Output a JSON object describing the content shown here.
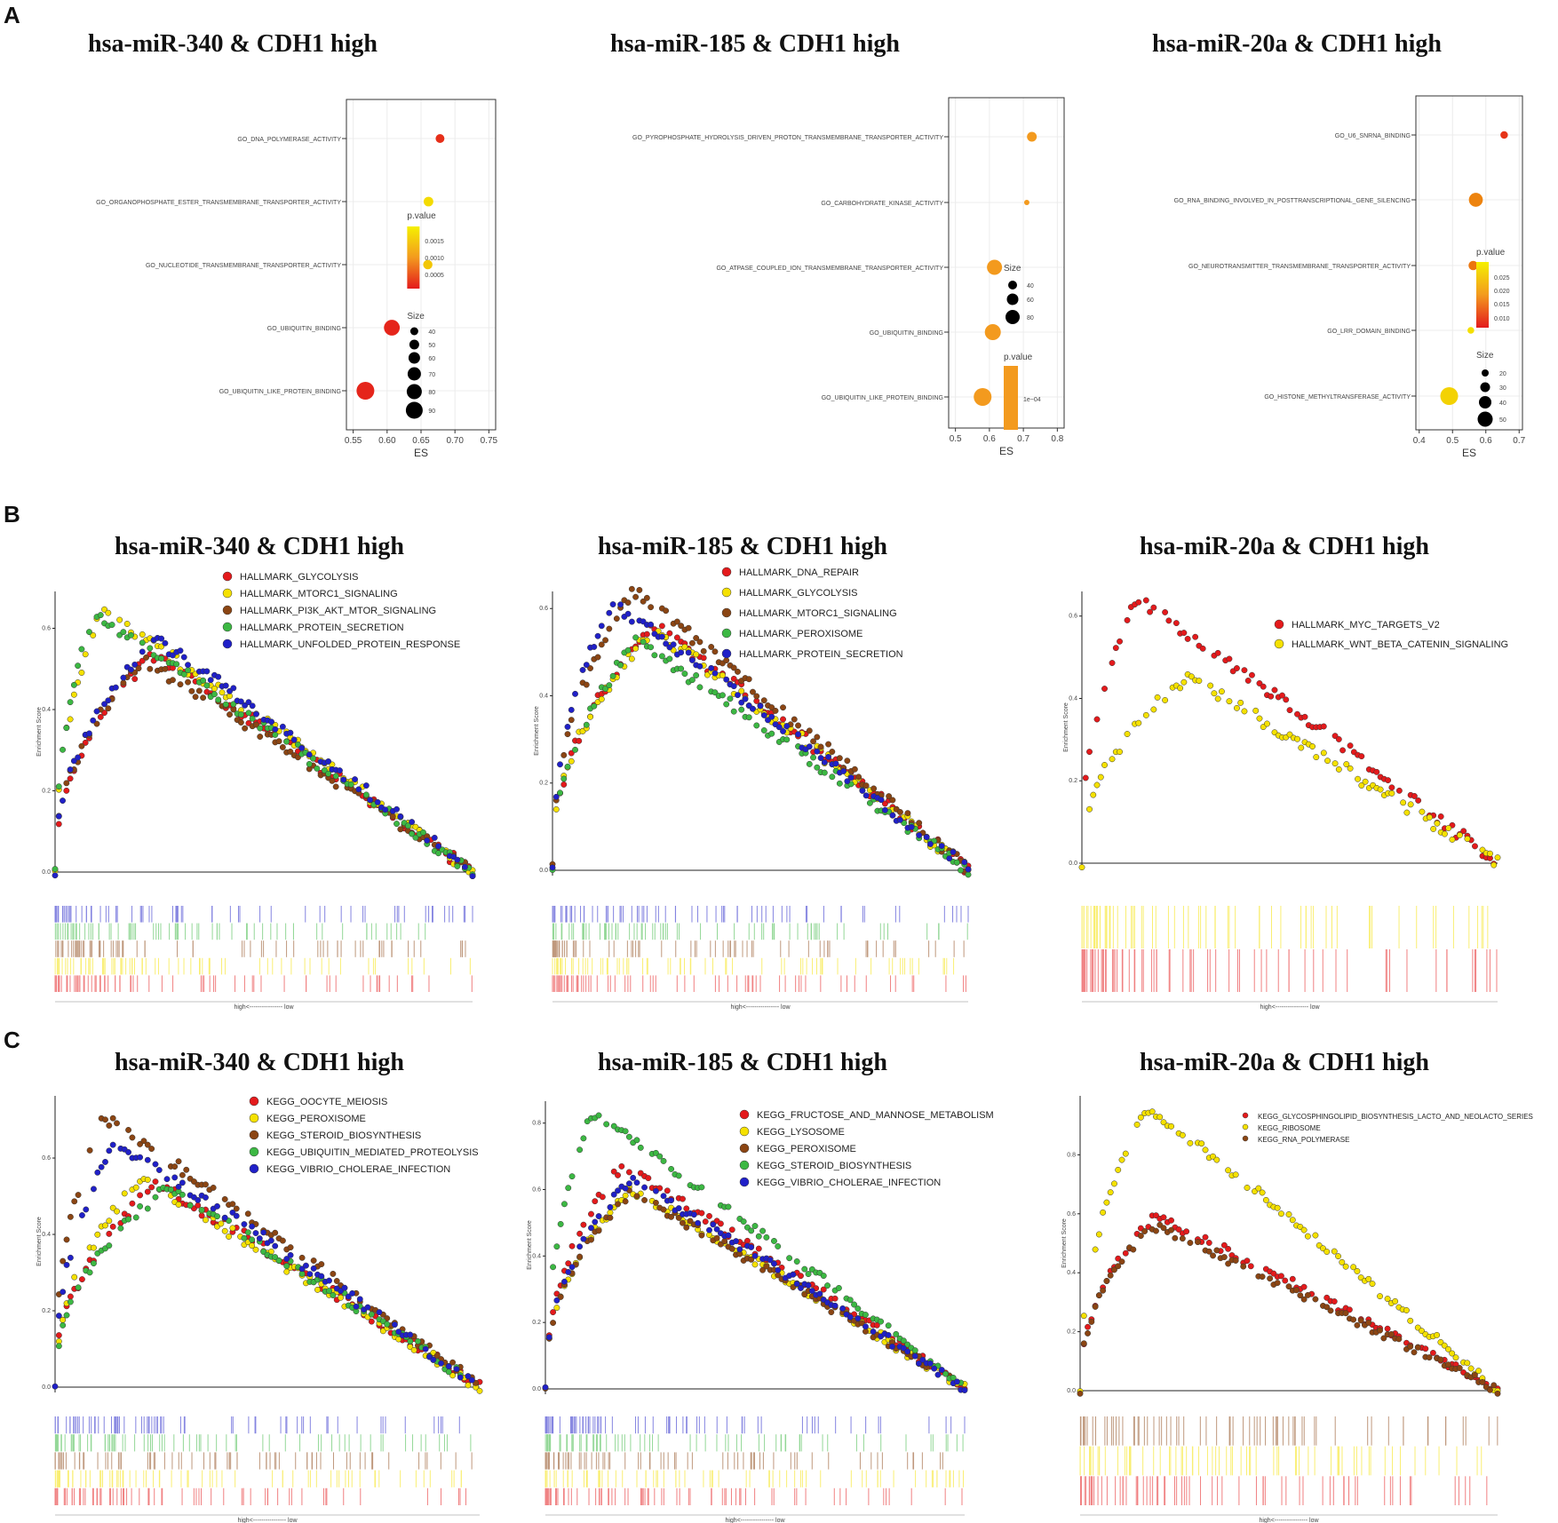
{
  "panel_letters": [
    "A",
    "B",
    "C"
  ],
  "colors": {
    "red": "#e41a1c",
    "yellow": "#f5e100",
    "brown": "#8b4513",
    "green": "#3cb843",
    "blue": "#2020c8",
    "orange": "#f39a1e",
    "grid": "#ececec"
  },
  "chart_data": [
    {
      "panel": "A",
      "type": "scatter",
      "title": "hsa-miR-340 & CDH1 high",
      "xlabel": "ES",
      "xlim": [
        0.54,
        0.76
      ],
      "xticks": [
        0.55,
        0.6,
        0.65,
        0.7,
        0.75
      ],
      "xtick_labels": [
        "0.55",
        "0.60",
        "0.65",
        "0.70",
        "0.75"
      ],
      "terms": [
        "GO_DNA_POLYMERASE_ACTIVITY",
        "GO_ORGANOPHOSPHATE_ESTER_TRANSMEMBRANE_TRANSPORTER_ACTIVITY",
        "GO_NUCLEOTIDE_TRANSMEMBRANE_TRANSPORTER_ACTIVITY",
        "GO_UBIQUITIN_BINDING",
        "GO_UBIQUITIN_LIKE_PROTEIN_BINDING"
      ],
      "es": [
        0.678,
        0.661,
        0.66,
        0.607,
        0.568
      ],
      "size": [
        35,
        40,
        38,
        78,
        90
      ],
      "color_value": [
        0.0002,
        0.0018,
        0.0016,
        0.0001,
        0.0001
      ],
      "colorbar_title": "p.value",
      "colorbar_labels": [
        "0.0015",
        "0.0010",
        "0.0005"
      ],
      "size_title": "Size",
      "size_labels": [
        "40",
        "50",
        "60",
        "70",
        "80",
        "90"
      ]
    },
    {
      "panel": "A",
      "type": "scatter",
      "title": "hsa-miR-185 & CDH1 high",
      "xlabel": "ES",
      "xlim": [
        0.48,
        0.82
      ],
      "xticks": [
        0.5,
        0.6,
        0.7,
        0.8
      ],
      "xtick_labels": [
        "0.5",
        "0.6",
        "0.7",
        "0.8"
      ],
      "terms": [
        "GO_PYROPHOSPHATE_HYDROLYSIS_DRIVEN_PROTON_TRANSMEMBRANE_TRANSPORTER_ACTIVITY",
        "GO_CARBOHYDRATE_KINASE_ACTIVITY",
        "GO_ATPASE_COUPLED_ION_TRANSMEMBRANE_TRANSPORTER_ACTIVITY",
        "GO_UBIQUITIN_BINDING",
        "GO_UBIQUITIN_LIKE_PROTEIN_BINDING"
      ],
      "es": [
        0.725,
        0.71,
        0.615,
        0.61,
        0.58
      ],
      "size": [
        45,
        20,
        75,
        80,
        90
      ],
      "size_title": "Size",
      "size_labels": [
        "40",
        "60",
        "80"
      ],
      "colorbar_title": "p.value",
      "colorbar_labels": [
        "1e−04"
      ]
    },
    {
      "panel": "A",
      "type": "scatter",
      "title": "hsa-miR-20a & CDH1 high",
      "xlabel": "ES",
      "xlim": [
        0.39,
        0.71
      ],
      "xticks": [
        0.4,
        0.5,
        0.6,
        0.7
      ],
      "xtick_labels": [
        "0.4",
        "0.5",
        "0.6",
        "0.7"
      ],
      "terms": [
        "GO_U6_SNRNA_BINDING",
        "GO_RNA_BINDING_INVOLVED_IN_POSTTRANSCRIPTIONAL_GENE_SILENCING",
        "GO_NEUROTRANSMITTER_TRANSMEMBRANE_TRANSPORTER_ACTIVITY",
        "GO_LRR_DOMAIN_BINDING",
        "GO_HISTONE_METHYLTRANSFERASE_ACTIVITY"
      ],
      "es": [
        0.655,
        0.57,
        0.562,
        0.555,
        0.49
      ],
      "size": [
        15,
        40,
        22,
        12,
        55
      ],
      "color_value": [
        0.004,
        0.016,
        0.014,
        0.03,
        0.028
      ],
      "colorbar_title": "p.value",
      "colorbar_labels": [
        "0.025",
        "0.020",
        "0.015",
        "0.010"
      ],
      "size_title": "Size",
      "size_labels": [
        "20",
        "30",
        "40",
        "50"
      ]
    },
    {
      "panel": "B",
      "type": "line",
      "title": "hsa-miR-340 & CDH1 high",
      "ylabel": "Enrichment Score",
      "ylim": [
        0,
        0.67
      ],
      "yticks": [
        0,
        0.2,
        0.4,
        0.6
      ],
      "ytick_labels": [
        "0.0",
        "0.2",
        "0.4",
        "0.6"
      ],
      "xlabel": "high<---------------- low",
      "series": [
        {
          "name": "HALLMARK_GLYCOLYSIS",
          "color": "red",
          "peak_x": 0.23,
          "peak_y": 0.53
        },
        {
          "name": "HALLMARK_MTORC1_SIGNALING",
          "color": "yellow",
          "peak_x": 0.11,
          "peak_y": 0.64
        },
        {
          "name": "HALLMARK_PI3K_AKT_MTOR_SIGNALING",
          "color": "brown",
          "peak_x": 0.21,
          "peak_y": 0.52
        },
        {
          "name": "HALLMARK_PROTEIN_SECRETION",
          "color": "green",
          "peak_x": 0.09,
          "peak_y": 0.63
        },
        {
          "name": "HALLMARK_UNFOLDED_PROTEIN_RESPONSE",
          "color": "blue",
          "peak_x": 0.24,
          "peak_y": 0.57
        }
      ]
    },
    {
      "panel": "B",
      "type": "line",
      "title": "hsa-miR-185 & CDH1 high",
      "ylabel": "Enrichment Score",
      "ylim": [
        0,
        0.62
      ],
      "yticks": [
        0,
        0.2,
        0.4,
        0.6
      ],
      "ytick_labels": [
        "0.0",
        "0.2",
        "0.4",
        "0.6"
      ],
      "xlabel": "high<---------------- low",
      "series": [
        {
          "name": "HALLMARK_DNA_REPAIR",
          "color": "red",
          "peak_x": 0.24,
          "peak_y": 0.56
        },
        {
          "name": "HALLMARK_GLYCOLYSIS",
          "color": "yellow",
          "peak_x": 0.24,
          "peak_y": 0.55
        },
        {
          "name": "HALLMARK_MTORC1_SIGNALING",
          "color": "brown",
          "peak_x": 0.19,
          "peak_y": 0.64
        },
        {
          "name": "HALLMARK_PEROXISOME",
          "color": "green",
          "peak_x": 0.2,
          "peak_y": 0.52
        },
        {
          "name": "HALLMARK_PROTEIN_SECRETION",
          "color": "blue",
          "peak_x": 0.14,
          "peak_y": 0.61
        }
      ]
    },
    {
      "panel": "B",
      "type": "line",
      "title": "hsa-miR-20a & CDH1 high",
      "ylabel": "Enrichment Score",
      "ylim": [
        0,
        0.64
      ],
      "yticks": [
        0,
        0.2,
        0.4,
        0.6
      ],
      "ytick_labels": [
        "0.0",
        "0.2",
        "0.4",
        "0.6"
      ],
      "xlabel": "high<---------------- low",
      "series": [
        {
          "name": "HALLMARK_MYC_TARGETS_V2",
          "color": "red",
          "peak_x": 0.13,
          "peak_y": 0.64
        },
        {
          "name": "HALLMARK_WNT_BETA_CATENIN_SIGNALING",
          "color": "yellow",
          "peak_x": 0.25,
          "peak_y": 0.45
        }
      ]
    },
    {
      "panel": "C",
      "type": "line",
      "title": "hsa-miR-340 & CDH1 high",
      "ylabel": "Enrichment Score",
      "ylim": [
        0,
        0.74
      ],
      "yticks": [
        0,
        0.2,
        0.4,
        0.6
      ],
      "ytick_labels": [
        "0.0",
        "0.2",
        "0.4",
        "0.6"
      ],
      "xlabel": "high<---------------- low",
      "series": [
        {
          "name": "KEGG_OOCYTE_MEIOSIS",
          "color": "red",
          "peak_x": 0.24,
          "peak_y": 0.53
        },
        {
          "name": "KEGG_PEROXISOME",
          "color": "yellow",
          "peak_x": 0.2,
          "peak_y": 0.54
        },
        {
          "name": "KEGG_STEROID_BIOSYNTHESIS",
          "color": "brown",
          "peak_x": 0.11,
          "peak_y": 0.71
        },
        {
          "name": "KEGG_UBIQUITIN_MEDIATED_PROTEOLYSIS",
          "color": "green",
          "peak_x": 0.26,
          "peak_y": 0.52
        },
        {
          "name": "KEGG_VIBRIO_CHOLERAE_INFECTION",
          "color": "blue",
          "peak_x": 0.14,
          "peak_y": 0.64
        }
      ]
    },
    {
      "panel": "C",
      "type": "line",
      "title": "hsa-miR-185 & CDH1 high",
      "ylabel": "Enrichment Score",
      "ylim": [
        0,
        0.84
      ],
      "yticks": [
        0,
        0.2,
        0.4,
        0.6,
        0.8
      ],
      "ytick_labels": [
        "0.0",
        "0.2",
        "0.4",
        "0.6",
        "0.8"
      ],
      "xlabel": "high<---------------- low",
      "series": [
        {
          "name": "KEGG_FRUCTOSE_AND_MANNOSE_METABOLISM",
          "color": "red",
          "peak_x": 0.18,
          "peak_y": 0.67
        },
        {
          "name": "KEGG_LYSOSOME",
          "color": "yellow",
          "peak_x": 0.2,
          "peak_y": 0.6
        },
        {
          "name": "KEGG_PEROXISOME",
          "color": "brown",
          "peak_x": 0.2,
          "peak_y": 0.59
        },
        {
          "name": "KEGG_STEROID_BIOSYNTHESIS",
          "color": "green",
          "peak_x": 0.11,
          "peak_y": 0.83
        },
        {
          "name": "KEGG_VIBRIO_CHOLERAE_INFECTION",
          "color": "blue",
          "peak_x": 0.2,
          "peak_y": 0.63
        }
      ]
    },
    {
      "panel": "C",
      "type": "line",
      "title": "hsa-miR-20a & CDH1 high",
      "ylabel": "Enrichment Score",
      "ylim": [
        0,
        0.97
      ],
      "yticks": [
        0,
        0.2,
        0.4,
        0.6,
        0.8
      ],
      "ytick_labels": [
        "0.0",
        "0.2",
        "0.4",
        "0.6",
        "0.8"
      ],
      "xlabel": "high<---------------- low",
      "series": [
        {
          "name": "KEGG_GLYCOSPHINGOLIPID_BIOSYNTHESIS_LACTO_AND_NEOLACTO_SERIES",
          "color": "red",
          "peak_x": 0.18,
          "peak_y": 0.59
        },
        {
          "name": "KEGG_RIBOSOME",
          "color": "yellow",
          "peak_x": 0.16,
          "peak_y": 0.96
        },
        {
          "name": "KEGG_RNA_POLYMERASE",
          "color": "brown",
          "peak_x": 0.17,
          "peak_y": 0.56
        }
      ]
    }
  ]
}
